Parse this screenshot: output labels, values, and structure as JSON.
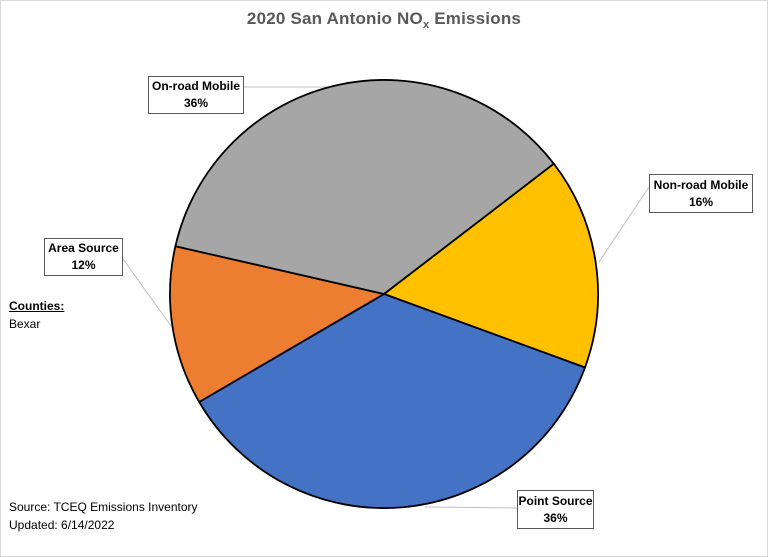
{
  "page": {
    "background": "#FFFFFF",
    "border_color": "#D9D9D9"
  },
  "title": {
    "text_prefix": "2020 San Antonio NO",
    "subscript": "x",
    "text_suffix": " Emissions",
    "color": "#595959"
  },
  "counties": {
    "heading": "Counties:",
    "county": "Bexar"
  },
  "source": {
    "line1": "Source: TCEQ Emissions Inventory",
    "line2": "Updated: 6/14/2022"
  },
  "chart_data": {
    "type": "pie",
    "title": "2020 San Antonio NOx Emissions",
    "start_angle_deg": 52.5,
    "direction": "clockwise",
    "slice_border_color": "#000000",
    "leader_line_color": "#BFBFBF",
    "legend_position": "callout-labels",
    "slices": [
      {
        "label": "Non-road Mobile",
        "percent": 16,
        "percent_label": "16%",
        "color": "#FFC000"
      },
      {
        "label": "Point Source",
        "percent": 36,
        "percent_label": "36%",
        "color": "#4472C4"
      },
      {
        "label": "Area Source",
        "percent": 12,
        "percent_label": "12%",
        "color": "#ED7D31"
      },
      {
        "label": "On-road Mobile",
        "percent": 36,
        "percent_label": "36%",
        "color": "#A6A6A6"
      }
    ]
  }
}
